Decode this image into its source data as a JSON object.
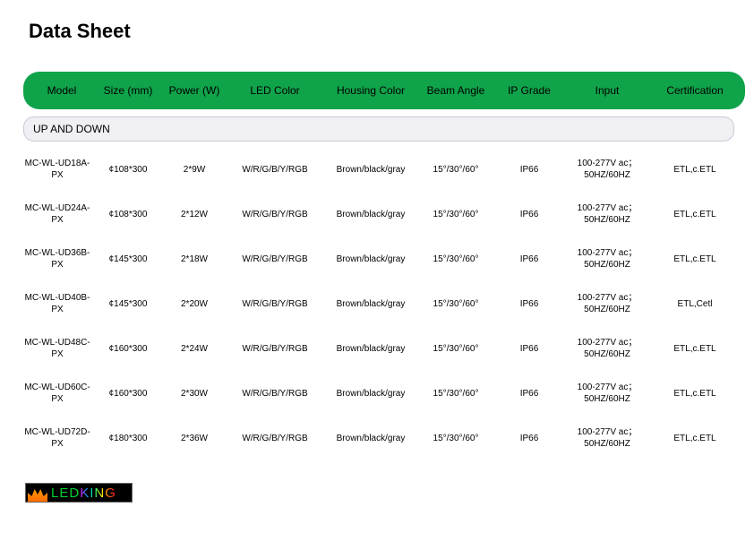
{
  "title": "Data Sheet",
  "headers": {
    "model": "Model",
    "size": "Size (mm)",
    "power": "Power (W)",
    "led": "LED  Color",
    "housing": "Housing Color",
    "beam": "Beam Angle",
    "ip": "IP Grade",
    "input": "Input",
    "cert": "Certification"
  },
  "section_label": "UP AND DOWN",
  "rows": [
    {
      "model": "MC-WL-UD18A-PX",
      "size": "¢108*300",
      "power": "2*9W",
      "led": "W/R/G/B/Y/RGB",
      "housing": "Brown/black/gray",
      "beam": "15°/30°/60°",
      "ip": "IP66",
      "input": "100-277V ac；50HZ/60HZ",
      "cert": "ETL,c.ETL"
    },
    {
      "model": "MC-WL-UD24A-PX",
      "size": "¢108*300",
      "power": "2*12W",
      "led": "W/R/G/B/Y/RGB",
      "housing": "Brown/black/gray",
      "beam": "15°/30°/60°",
      "ip": "IP66",
      "input": "100-277V ac；50HZ/60HZ",
      "cert": "ETL,c.ETL"
    },
    {
      "model": "MC-WL-UD36B-PX",
      "size": "¢145*300",
      "power": "2*18W",
      "led": "W/R/G/B/Y/RGB",
      "housing": "Brown/black/gray",
      "beam": "15°/30°/60°",
      "ip": "IP66",
      "input": "100-277V ac；50HZ/60HZ",
      "cert": "ETL,c.ETL"
    },
    {
      "model": "MC-WL-UD40B-PX",
      "size": "¢145*300",
      "power": "2*20W",
      "led": "W/R/G/B/Y/RGB",
      "housing": "Brown/black/gray",
      "beam": "15°/30°/60°",
      "ip": "IP66",
      "input": "100-277V ac；50HZ/60HZ",
      "cert": "ETL,Cetl"
    },
    {
      "model": "MC-WL-UD48C-PX",
      "size": "¢160*300",
      "power": "2*24W",
      "led": "W/R/G/B/Y/RGB",
      "housing": "Brown/black/gray",
      "beam": "15°/30°/60°",
      "ip": "IP66",
      "input": "100-277V ac；50HZ/60HZ",
      "cert": "ETL,c.ETL"
    },
    {
      "model": "MC-WL-UD60C-PX",
      "size": "¢160*300",
      "power": "2*30W",
      "led": "W/R/G/B/Y/RGB",
      "housing": "Brown/black/gray",
      "beam": "15°/30°/60°",
      "ip": "IP66",
      "input": "100-277V ac；50HZ/60HZ",
      "cert": "ETL,c.ETL"
    },
    {
      "model": "MC-WL-UD72D-PX",
      "size": "¢180*300",
      "power": "2*36W",
      "led": "W/R/G/B/Y/RGB",
      "housing": "Brown/black/gray",
      "beam": "15°/30°/60°",
      "ip": "IP66",
      "input": "100-277V ac；50HZ/60HZ",
      "cert": "ETL,c.ETL"
    }
  ],
  "logo": {
    "led": "LED",
    "king": "KING"
  },
  "colors": {
    "header_bg": "#0fa34a",
    "section_bg": "#f0f0f4",
    "section_border": "#c8c8d6"
  }
}
